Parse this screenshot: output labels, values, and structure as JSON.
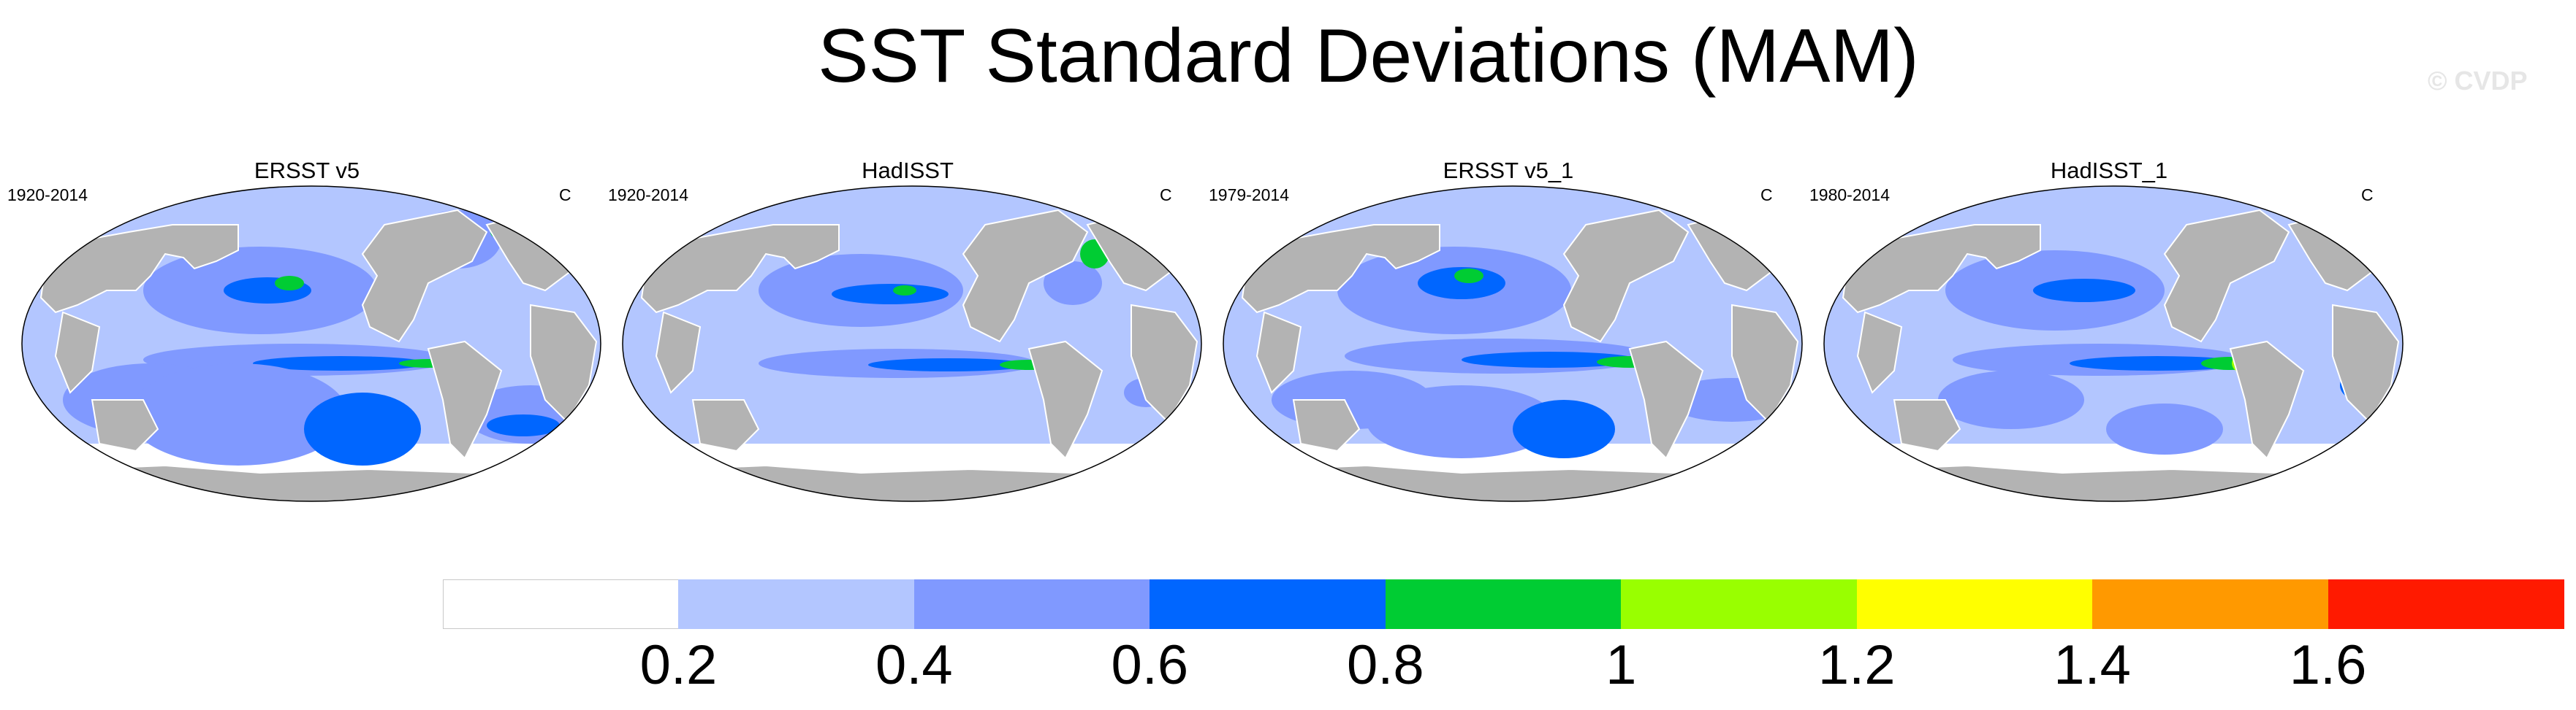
{
  "title": "SST Standard Deviations (MAM)",
  "watermark": "© CVDP",
  "chart_data": {
    "type": "heatmap",
    "projection": "Robinson (global map)",
    "variable": "SST standard deviation, March-April-May",
    "units": "C",
    "panels": [
      {
        "title": "ERSST v5",
        "period": "1920-2014",
        "units": "C"
      },
      {
        "title": "HadISST",
        "period": "1920-2014",
        "units": "C"
      },
      {
        "title": "ERSST v5_1",
        "period": "1979-2014",
        "units": "C"
      },
      {
        "title": "HadISST_1",
        "period": "1980-2014",
        "units": "C"
      }
    ],
    "colorbar": {
      "levels": [
        0.2,
        0.4,
        0.6,
        0.8,
        1,
        1.2,
        1.4,
        1.6
      ],
      "labels": [
        "0.2",
        "0.4",
        "0.6",
        "0.8",
        "1",
        "1.2",
        "1.4",
        "1.6"
      ],
      "colors": [
        "#ffffff",
        "#b3c6ff",
        "#8099ff",
        "#0066ff",
        "#00cc33",
        "#99ff00",
        "#ffff00",
        "#ff9900",
        "#ff1a00"
      ]
    },
    "colors": {
      "land": "#b3b3b3",
      "missing": "#ffffff"
    }
  }
}
